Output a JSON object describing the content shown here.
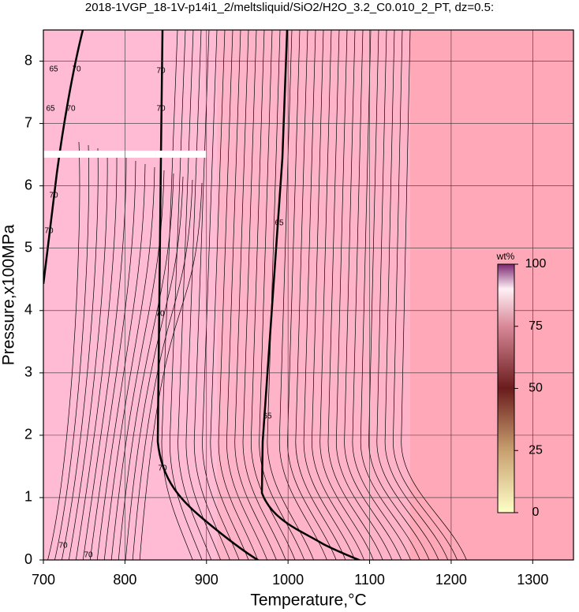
{
  "chart_data": {
    "type": "contour",
    "title": "2018-1VGP_18-1V-p14i1_2/meltsliquid/SiO2/H2O_3.2_C0.010_2_PT, dz=0.5:",
    "x_label": "Temperature,°C",
    "y_label": "Pressure,x100MPa",
    "xlim": [
      700,
      1350
    ],
    "xticks": [
      700,
      800,
      900,
      1000,
      1100,
      1200,
      1300
    ],
    "ylim": [
      0,
      8.5
    ],
    "yticks": [
      0,
      1,
      2,
      3,
      4,
      5,
      6,
      7,
      8
    ],
    "grid": true,
    "contour_levels": [
      65,
      70
    ],
    "colorbar": {
      "label": "wt%",
      "lim": [
        0,
        100
      ],
      "ticks": [
        0,
        25,
        50,
        75,
        100
      ]
    }
  }
}
